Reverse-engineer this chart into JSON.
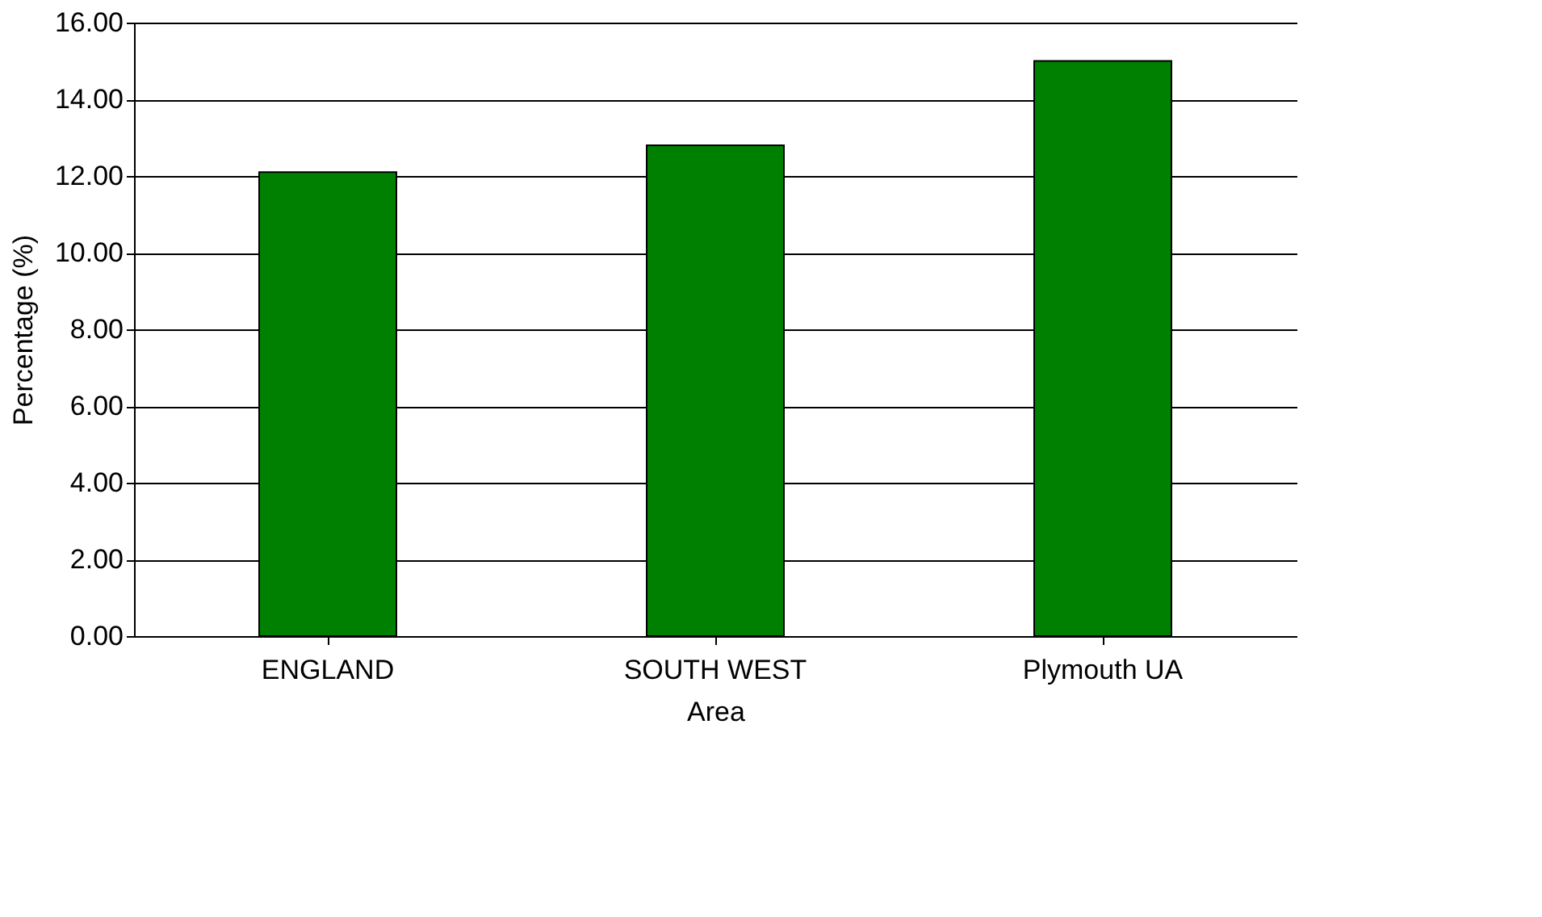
{
  "chart_data": {
    "type": "bar",
    "xlabel": "Area",
    "ylabel": "Percentage (%)",
    "categories": [
      "ENGLAND",
      "SOUTH WEST",
      "Plymouth UA"
    ],
    "series": [
      {
        "color": "#008000",
        "values": [
          12.1,
          12.8,
          15.0
        ]
      }
    ],
    "ylim": [
      0,
      16
    ],
    "yticks": [
      {
        "value": 0,
        "label": "0.00"
      },
      {
        "value": 2,
        "label": "2.00"
      },
      {
        "value": 4,
        "label": "4.00"
      },
      {
        "value": 6,
        "label": "6.00"
      },
      {
        "value": 8,
        "label": "8.00"
      },
      {
        "value": 10,
        "label": "10.00"
      },
      {
        "value": 12,
        "label": "12.00"
      },
      {
        "value": 14,
        "label": "14.00"
      },
      {
        "value": 16,
        "label": "16.00"
      }
    ],
    "grid": "y",
    "legend": false
  }
}
